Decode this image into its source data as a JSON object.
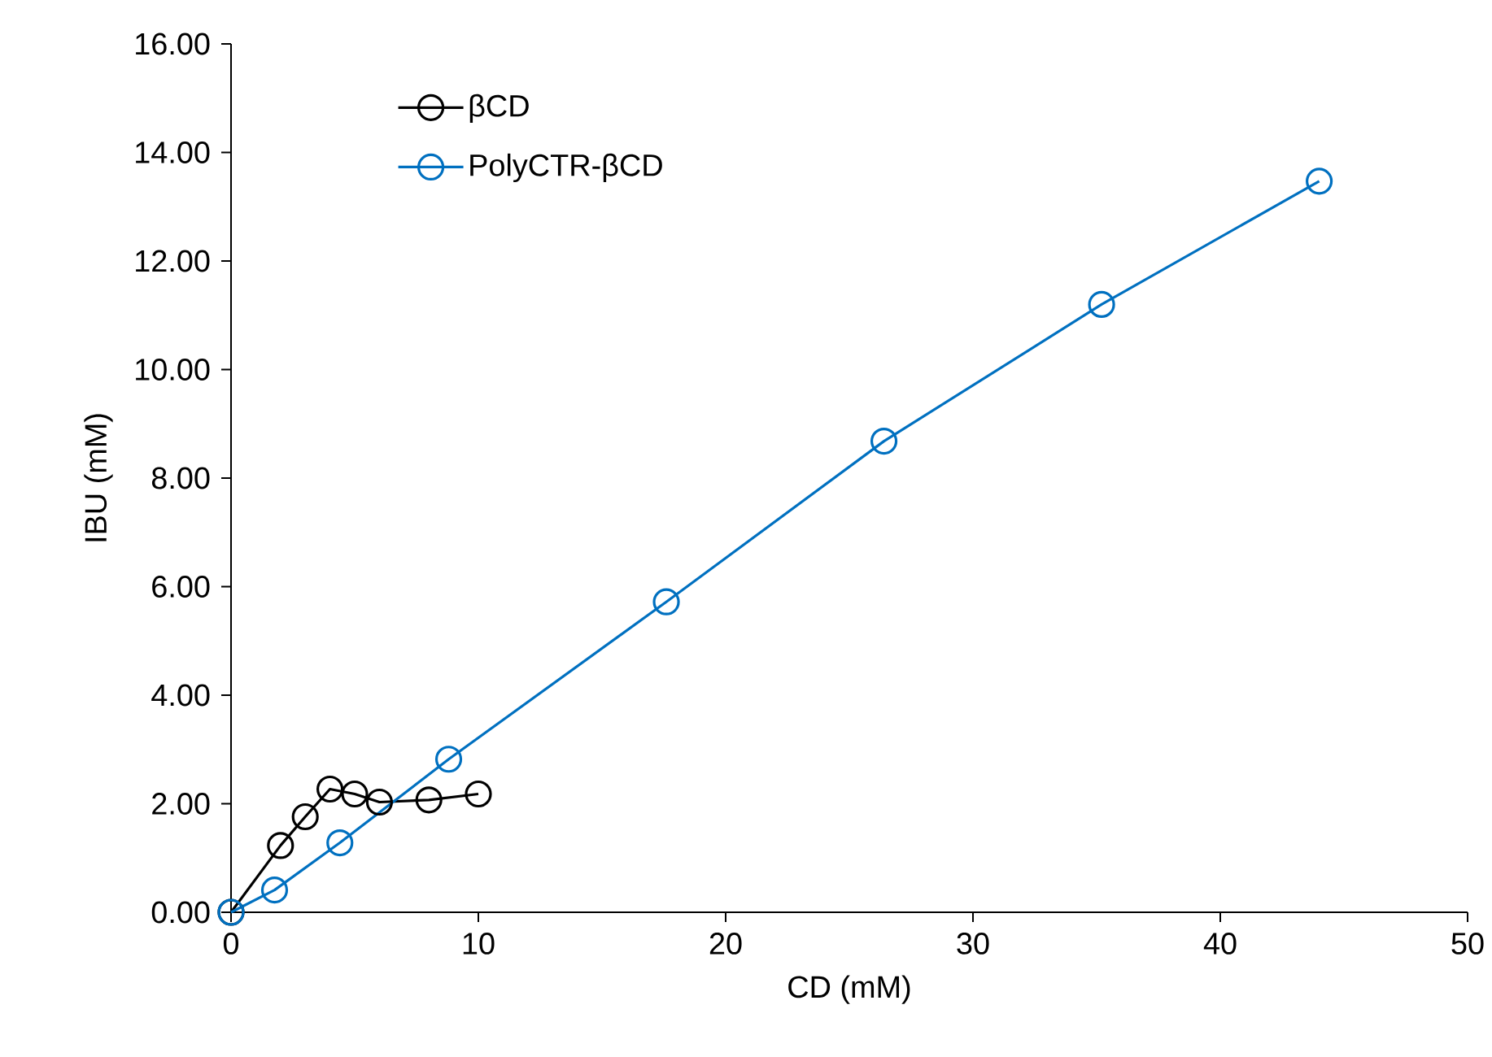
{
  "chart_data": {
    "type": "line",
    "xlabel": "CD (mM)",
    "ylabel": "IBU (mM)",
    "xlim": [
      0,
      50
    ],
    "xticks": [
      0,
      10,
      20,
      30,
      40,
      50
    ],
    "ylim": [
      0,
      16
    ],
    "yticks": [
      {
        "value": 0,
        "label": "0.00"
      },
      {
        "value": 2,
        "label": "2.00"
      },
      {
        "value": 4,
        "label": "4.00"
      },
      {
        "value": 6,
        "label": "6.00"
      },
      {
        "value": 8,
        "label": "8.00"
      },
      {
        "value": 10,
        "label": "10.00"
      },
      {
        "value": 12,
        "label": "12.00"
      },
      {
        "value": 14,
        "label": "14.00"
      },
      {
        "value": 16,
        "label": "16.00"
      }
    ],
    "marker": "circle",
    "line_style": "solid",
    "grid": false,
    "legend": "top left",
    "series": [
      {
        "name": "βCD",
        "color": "#000000",
        "x": [
          0,
          2,
          3,
          4,
          5,
          6,
          8,
          10
        ],
        "values": [
          0,
          1.23,
          1.76,
          2.27,
          2.18,
          2.03,
          2.07,
          2.18
        ]
      },
      {
        "name": "PolyCTR-βCD",
        "color": "#0070c0",
        "x": [
          0,
          1.76,
          4.4,
          8.8,
          17.6,
          26.4,
          35.2,
          44
        ],
        "values": [
          0,
          0.41,
          1.28,
          2.82,
          5.72,
          8.68,
          11.2,
          13.47
        ]
      }
    ]
  }
}
